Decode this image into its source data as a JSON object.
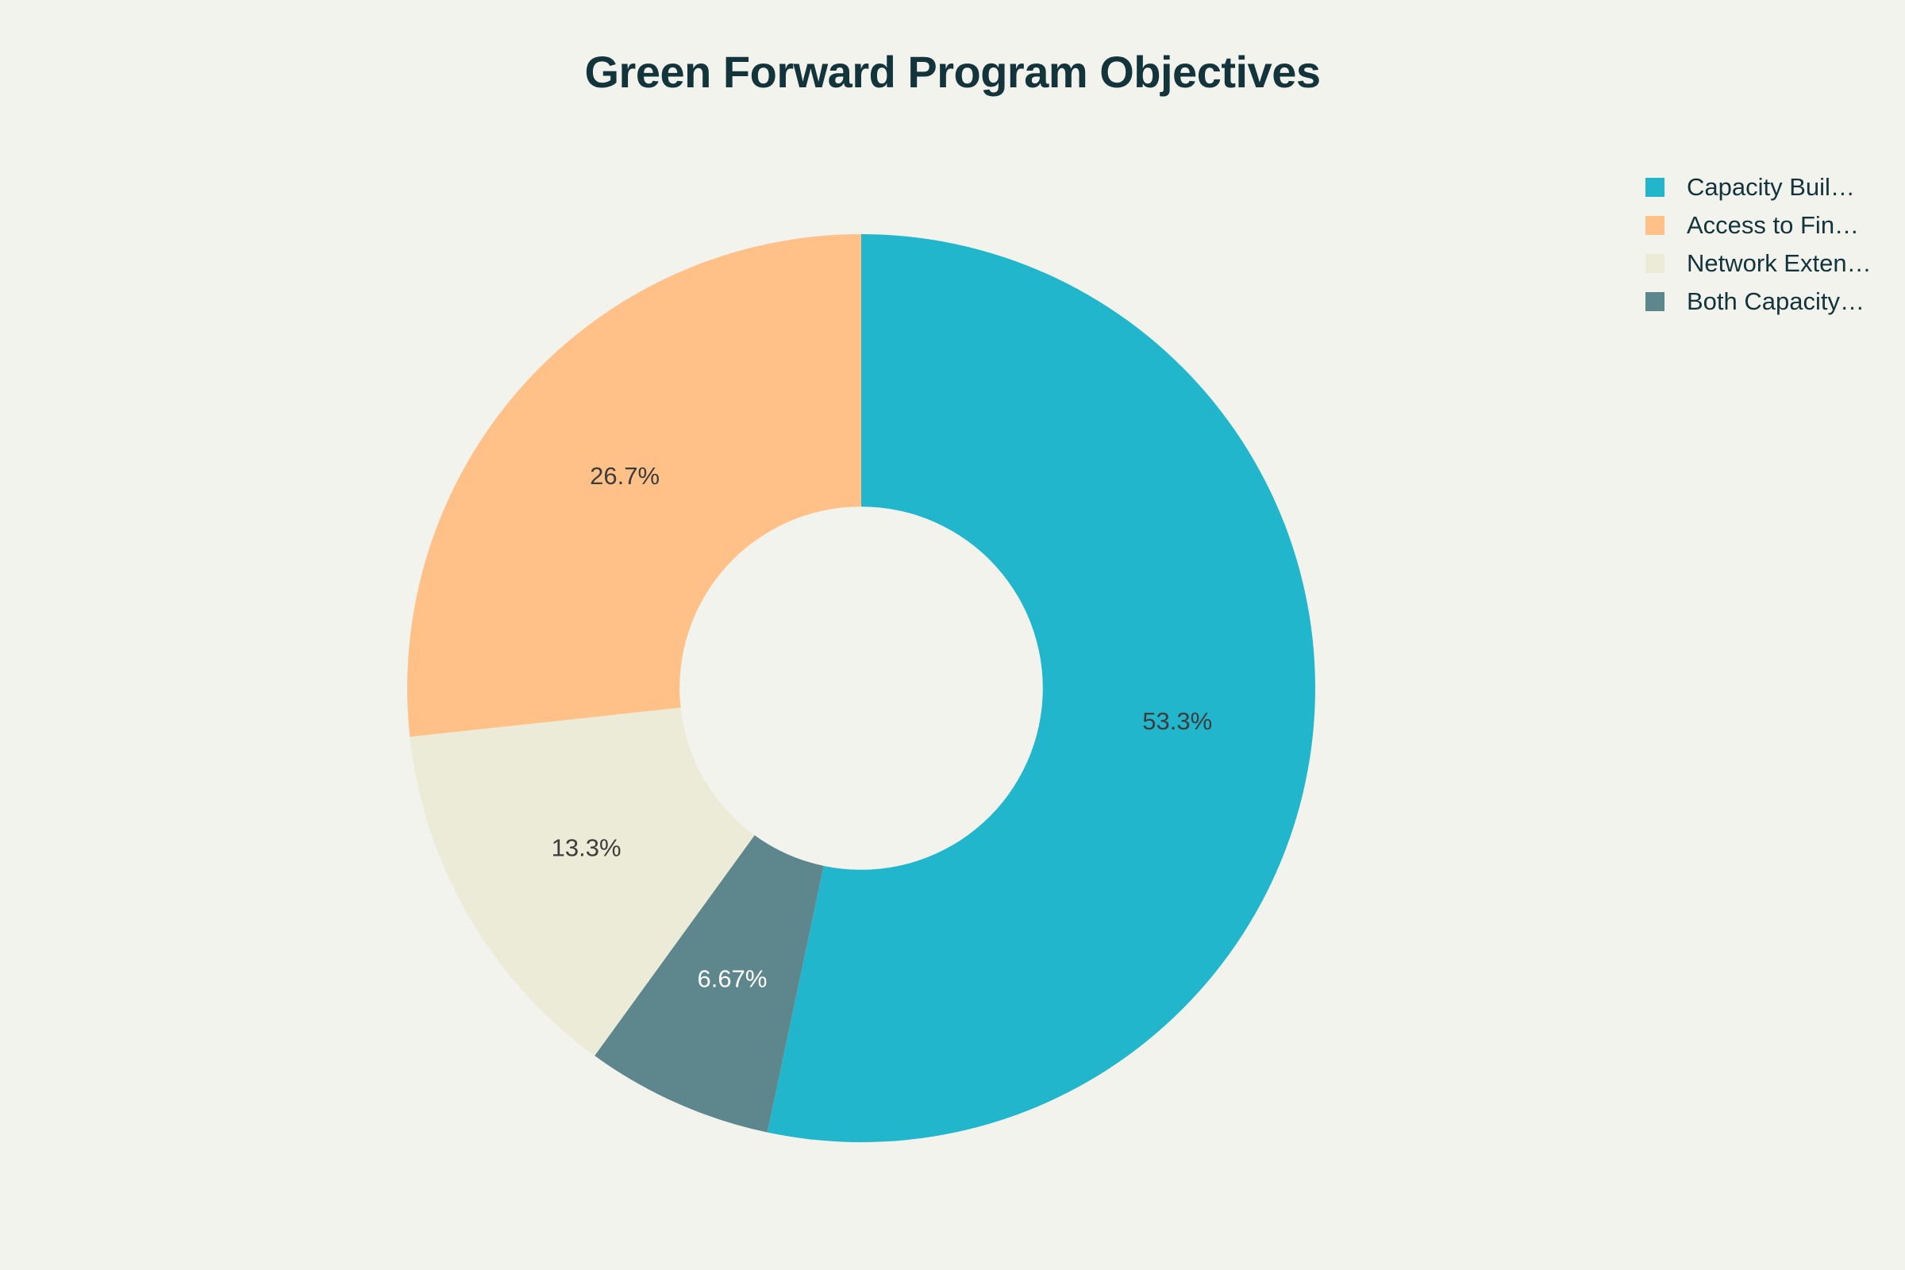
{
  "chart_data": {
    "type": "pie",
    "title": "Green Forward Program Objectives",
    "hole": 0.4,
    "direction": "clockwise",
    "slices": [
      {
        "label": "Capacity Buil…",
        "value": 53.3,
        "text": "53.3%",
        "color": "#21b6cb",
        "text_color": "#3d3d3d"
      },
      {
        "label": "Both Capacity…",
        "value": 6.67,
        "text": "6.67%",
        "color": "#5e878d",
        "text_color": "#ffffff"
      },
      {
        "label": "Network Exten…",
        "value": 13.3,
        "text": "13.3%",
        "color": "#ecebd7",
        "text_color": "#3d3d3d"
      },
      {
        "label": "Access to Fin…",
        "value": 26.7,
        "text": "26.7%",
        "color": "#ffc187",
        "text_color": "#3d3d3d"
      }
    ],
    "legend": {
      "placement": "top-right",
      "items": [
        {
          "label": "Capacity Buil…",
          "color": "#21b6cb"
        },
        {
          "label": "Access to Fin…",
          "color": "#ffc187"
        },
        {
          "label": "Network Exten…",
          "color": "#ecebd7"
        },
        {
          "label": "Both Capacity…",
          "color": "#5e878d"
        }
      ]
    }
  }
}
